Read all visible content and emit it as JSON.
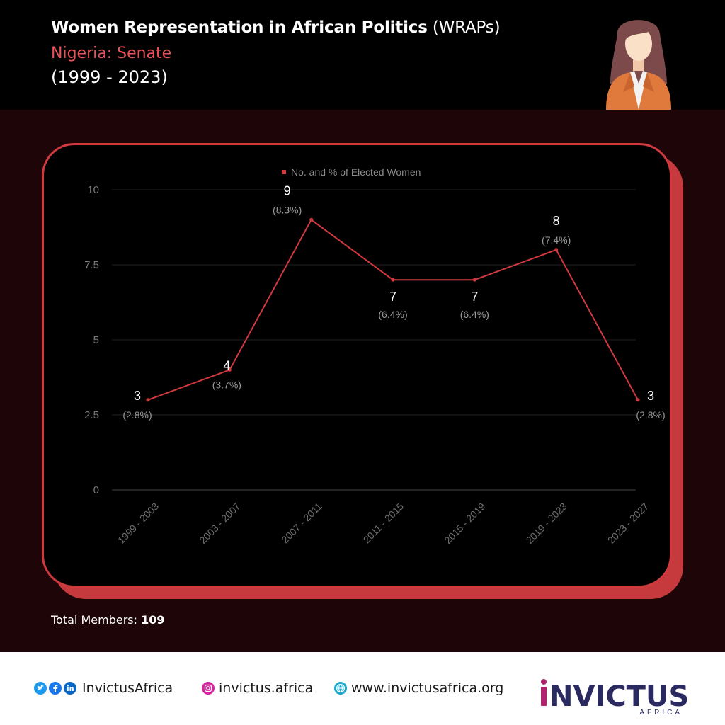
{
  "header": {
    "title_bold": "Women Representation in African Politics",
    "title_tail": "(WRAPs)",
    "subtitle": "Nigeria: Senate",
    "period": "(1999 - 2023)"
  },
  "chart_data": {
    "type": "line",
    "legend": "No. and % of Elected Women",
    "legend_position": "top-center",
    "categories": [
      "1999 - 2003",
      "2003 - 2007",
      "2007 - 2011",
      "2011 - 2015",
      "2015 - 2019",
      "2019 - 2023",
      "2023 - 2027"
    ],
    "series": [
      {
        "name": "No. and % of Elected Women",
        "values": [
          3,
          4,
          9,
          7,
          7,
          8,
          3
        ],
        "percent_labels": [
          "(2.8%)",
          "(3.7%)",
          "(8.3%)",
          "(6.4%)",
          "(6.4%)",
          "(7.4%)",
          "(2.8%)"
        ]
      }
    ],
    "yticks": [
      "0",
      "2.5",
      "5",
      "7.5",
      "10"
    ],
    "ylim": [
      0,
      10
    ],
    "grid": true,
    "line_color": "#d0393e"
  },
  "footer": {
    "total_label": "Total Members:",
    "total_value": "109",
    "social_handle": "InvictusAfrica",
    "instagram": "invictus.africa",
    "website": "www.invictusafrica.org",
    "brand": "INVICTUS",
    "brand_sub": "AFRICA"
  },
  "colors": {
    "accent": "#d0393e",
    "background": "#1e0508",
    "brand_navy": "#2a2a60",
    "brand_magenta": "#b0246e"
  }
}
